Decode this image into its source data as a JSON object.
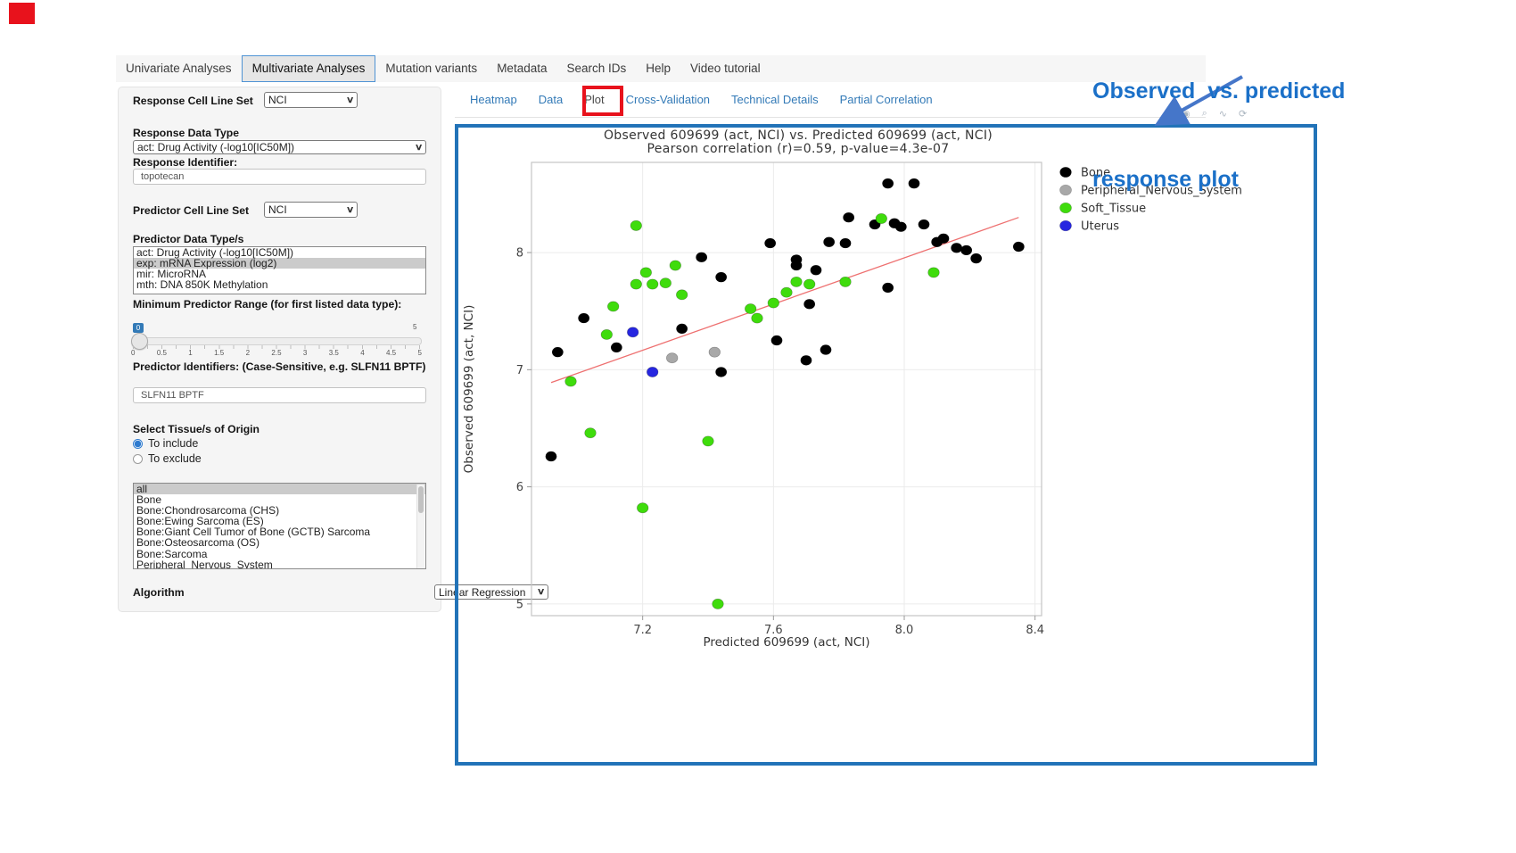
{
  "decorations": {
    "red_marker_color": "#e8121c",
    "plot_tab_box_color": "#e8121c",
    "panel_border_color": "#2273b8",
    "annotation_color": "#1b70c8",
    "arrow_color": "#4576c9"
  },
  "icons": {
    "chevron_down": "∨",
    "camera": "◉",
    "zoom": "⌕",
    "pan": "∿",
    "reset": "⟳"
  },
  "annotation": {
    "line1": "Observed  vs. predicted",
    "line2": "response plot"
  },
  "navbar": {
    "tabs": [
      {
        "label": "Univariate Analyses",
        "active": false
      },
      {
        "label": "Multivariate Analyses",
        "active": true
      },
      {
        "label": "Mutation variants",
        "active": false
      },
      {
        "label": "Metadata",
        "active": false
      },
      {
        "label": "Search IDs",
        "active": false
      },
      {
        "label": "Help",
        "active": false
      },
      {
        "label": "Video tutorial",
        "active": false
      }
    ]
  },
  "sidebar": {
    "response_cell_line_set_label": "Response Cell Line Set",
    "response_cell_line_set_value": "NCI",
    "response_data_type_label": "Response Data Type",
    "response_data_type_value": "act: Drug Activity (-log10[IC50M])",
    "response_identifier_label": "Response Identifier:",
    "response_identifier_value": "topotecan",
    "predictor_cell_line_set_label": "Predictor Cell Line Set",
    "predictor_cell_line_set_value": "NCI",
    "predictor_data_types_label": "Predictor Data Type/s",
    "predictor_data_types_options": [
      "act: Drug Activity (-log10[IC50M])",
      "exp: mRNA Expression (log2)",
      "mir: MicroRNA",
      "mth: DNA 850K Methylation"
    ],
    "predictor_data_types_selected": "exp: mRNA Expression (log2)",
    "min_range_label": "Minimum Predictor Range (for first listed data type):",
    "min_range_value": "0",
    "min_range_max": "5",
    "min_range_ticks": [
      "0",
      "0.5",
      "1",
      "1.5",
      "2",
      "2.5",
      "3",
      "3.5",
      "4",
      "4.5",
      "5"
    ],
    "predictor_identifiers_label": "Predictor Identifiers: (Case-Sensitive, e.g. SLFN11 BPTF)",
    "predictor_identifiers_value": "SLFN11 BPTF",
    "tissue_label": "Select Tissue/s of Origin",
    "tissue_radio_include": "To include",
    "tissue_radio_exclude": "To exclude",
    "tissue_radio_selected": "To include",
    "tissue_options": [
      "all",
      "Bone",
      "Bone:Chondrosarcoma (CHS)",
      "Bone:Ewing Sarcoma (ES)",
      "Bone:Giant Cell Tumor of Bone (GCTB) Sarcoma",
      "Bone:Osteosarcoma (OS)",
      "Bone:Sarcoma",
      "Peripheral_Nervous_System"
    ],
    "tissue_selected": "all",
    "algorithm_label": "Algorithm",
    "algorithm_value": "Linear Regression"
  },
  "subtabs": {
    "items": [
      {
        "label": "Heatmap",
        "active": false
      },
      {
        "label": "Data",
        "active": false
      },
      {
        "label": "Plot",
        "active": true
      },
      {
        "label": "Cross-Validation",
        "active": false
      },
      {
        "label": "Technical Details",
        "active": false
      },
      {
        "label": "Partial Correlation",
        "active": false
      }
    ]
  },
  "modebar_icons": [
    "camera",
    "zoom",
    "pan",
    "reset"
  ],
  "chart_data": {
    "type": "scatter",
    "title": "Observed 609699 (act, NCI) vs. Predicted 609699 (act, NCI)",
    "subtitle": "Pearson correlation (r)=0.59, p-value=4.3e-07",
    "xlabel": "Predicted 609699 (act, NCI)",
    "ylabel": "Observed 609699 (act, NCI)",
    "xlim": [
      6.86,
      8.42
    ],
    "ylim": [
      4.9,
      8.77
    ],
    "xticks": [
      7.2,
      7.6,
      8.0,
      8.4
    ],
    "xtick_labels": [
      "7.2",
      "7.6",
      "8.0",
      "8.4"
    ],
    "yticks": [
      5,
      6,
      7,
      8
    ],
    "ytick_labels": [
      "5",
      "6",
      "7",
      "8"
    ],
    "grid": true,
    "legend_position": "right-top",
    "regression_line": {
      "x1": 6.92,
      "y1": 6.89,
      "x2": 8.35,
      "y2": 8.3,
      "color": "#ee7070"
    },
    "series": [
      {
        "name": "Bone",
        "color": "#000000",
        "points": [
          [
            6.92,
            6.26
          ],
          [
            6.94,
            7.15
          ],
          [
            7.02,
            7.44
          ],
          [
            7.12,
            7.19
          ],
          [
            7.32,
            7.35
          ],
          [
            7.38,
            7.96
          ],
          [
            7.44,
            7.79
          ],
          [
            7.44,
            6.98
          ],
          [
            7.59,
            8.08
          ],
          [
            7.61,
            7.25
          ],
          [
            7.67,
            7.94
          ],
          [
            7.67,
            7.89
          ],
          [
            7.7,
            7.08
          ],
          [
            7.71,
            7.56
          ],
          [
            7.73,
            7.85
          ],
          [
            7.76,
            7.17
          ],
          [
            7.77,
            8.09
          ],
          [
            7.82,
            8.08
          ],
          [
            7.83,
            8.3
          ],
          [
            7.91,
            8.24
          ],
          [
            7.95,
            8.59
          ],
          [
            7.95,
            7.7
          ],
          [
            7.97,
            8.25
          ],
          [
            7.99,
            8.22
          ],
          [
            8.03,
            8.59
          ],
          [
            8.06,
            8.24
          ],
          [
            8.1,
            8.09
          ],
          [
            8.12,
            8.12
          ],
          [
            8.16,
            8.04
          ],
          [
            8.19,
            8.02
          ],
          [
            8.22,
            7.95
          ],
          [
            8.35,
            8.05
          ]
        ]
      },
      {
        "name": "Peripheral_Nervous_System",
        "color": "#a8a8a8",
        "points": [
          [
            7.29,
            7.1
          ],
          [
            7.42,
            7.15
          ]
        ]
      },
      {
        "name": "Soft_Tissue",
        "color": "#3fdc0c",
        "points": [
          [
            6.98,
            6.9
          ],
          [
            7.04,
            6.46
          ],
          [
            7.09,
            7.3
          ],
          [
            7.11,
            7.54
          ],
          [
            7.18,
            8.23
          ],
          [
            7.18,
            7.73
          ],
          [
            7.2,
            5.82
          ],
          [
            7.21,
            7.83
          ],
          [
            7.23,
            7.73
          ],
          [
            7.27,
            7.74
          ],
          [
            7.3,
            7.89
          ],
          [
            7.32,
            7.64
          ],
          [
            7.4,
            6.39
          ],
          [
            7.43,
            5.0
          ],
          [
            7.53,
            7.52
          ],
          [
            7.55,
            7.44
          ],
          [
            7.6,
            7.57
          ],
          [
            7.64,
            7.66
          ],
          [
            7.67,
            7.75
          ],
          [
            7.71,
            7.73
          ],
          [
            7.82,
            7.75
          ],
          [
            7.93,
            8.29
          ],
          [
            8.09,
            7.83
          ]
        ]
      },
      {
        "name": "Uterus",
        "color": "#2626e0",
        "points": [
          [
            7.17,
            7.32
          ],
          [
            7.23,
            6.98
          ]
        ]
      }
    ]
  }
}
